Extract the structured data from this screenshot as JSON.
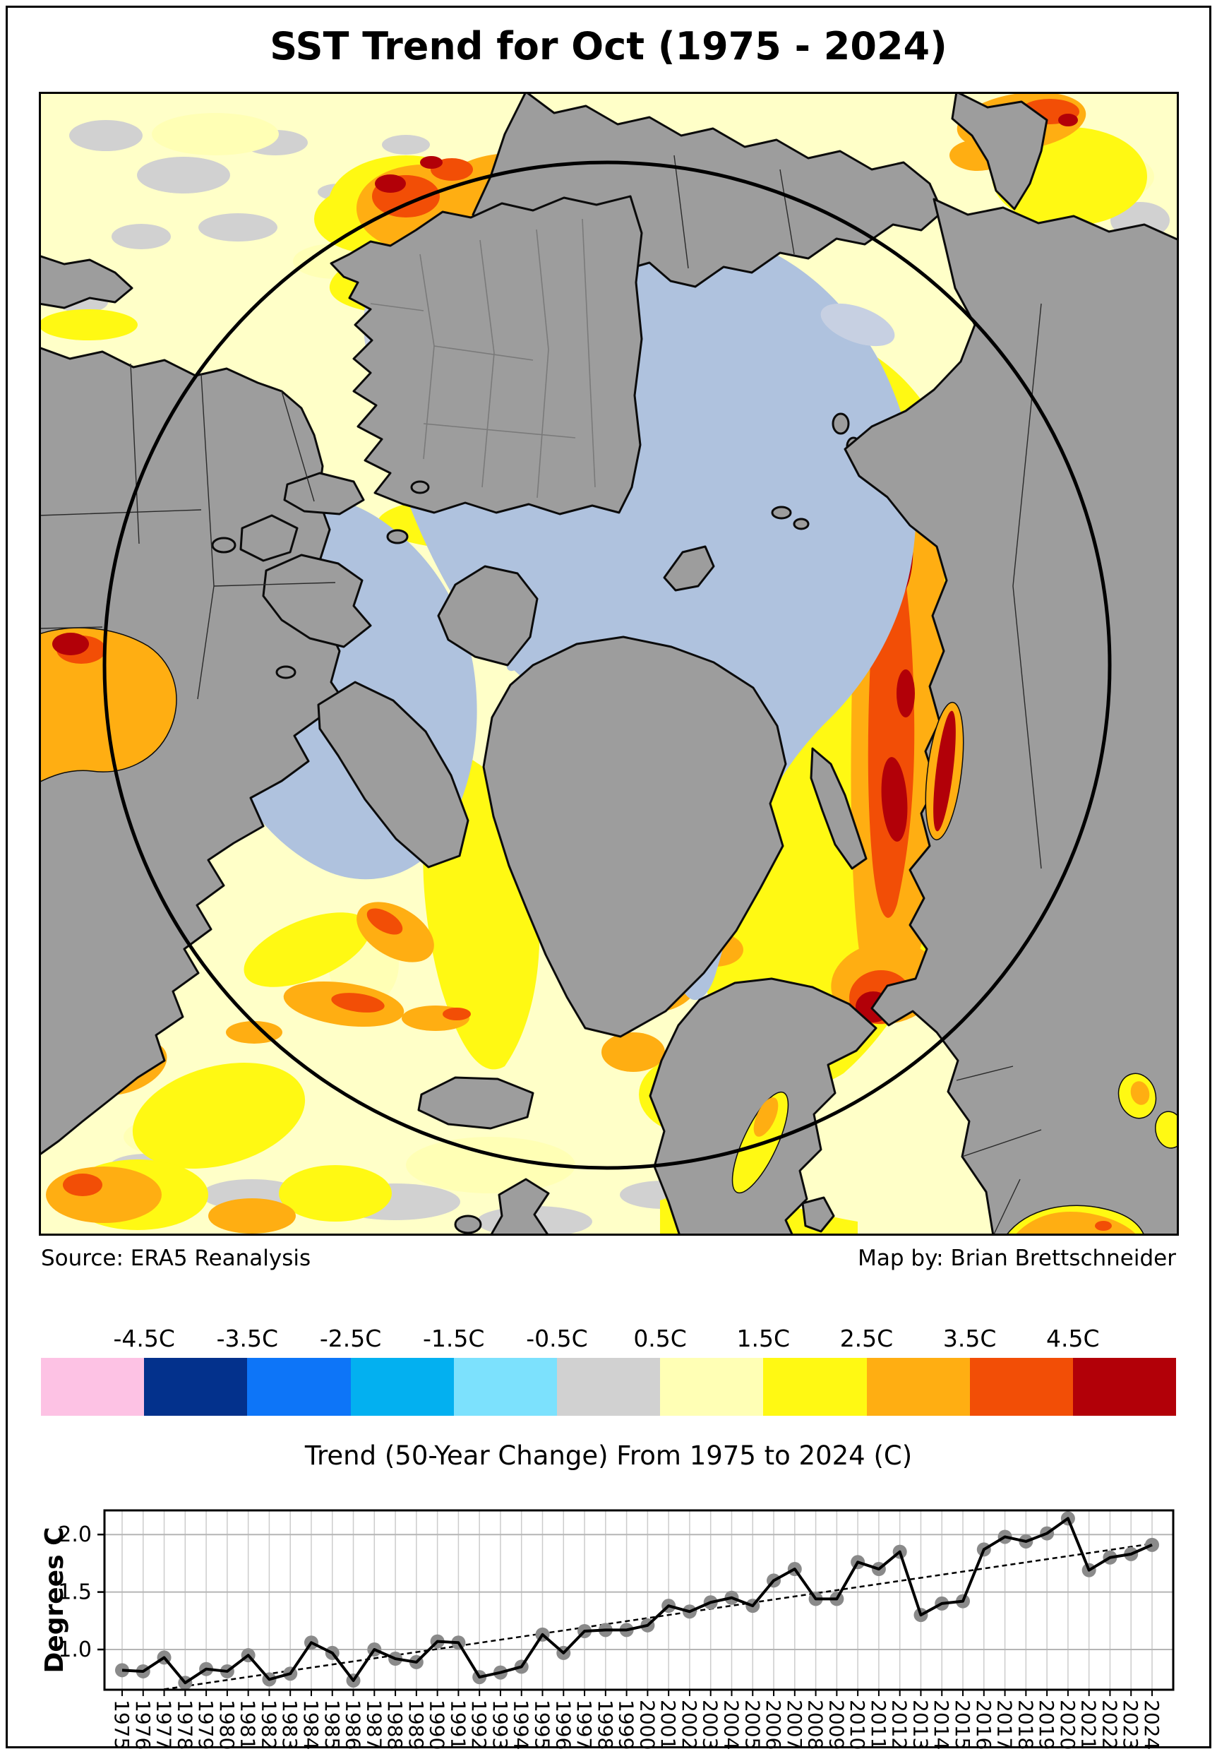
{
  "title": "SST Trend for Oct (1975 - 2024)",
  "attribution": {
    "source": "Source: ERA5 Reanalysis",
    "credit": "Map by: Brian Brettschneider"
  },
  "map_colors": {
    "ocean": "#FFFFC8",
    "land": "#9D9D9D",
    "coast": "#0B0B0B",
    "ice": "#AFC2DE",
    "arctic_circle": "#000000"
  },
  "colorbar": {
    "tick_labels": [
      "-4.5C",
      "-3.5C",
      "-2.5C",
      "-1.5C",
      "-0.5C",
      "0.5C",
      "1.5C",
      "2.5C",
      "3.5C",
      "4.5C"
    ],
    "colors": [
      "#FDC2E4",
      "#03318C",
      "#0D75F8",
      "#03B0F0",
      "#7CE1FD",
      "#D1D1D1",
      "#FFFFB5",
      "#FFF913",
      "#FFAE12",
      "#F24E06",
      "#B20008"
    ],
    "caption": "Trend (50-Year Change) From 1975 to 2024 (C)"
  },
  "chart_data": {
    "type": "line",
    "title": "",
    "xlabel": "",
    "ylabel": "Degrees C",
    "x": [
      1975,
      1976,
      1977,
      1978,
      1979,
      1980,
      1981,
      1982,
      1983,
      1984,
      1985,
      1986,
      1987,
      1988,
      1989,
      1990,
      1991,
      1992,
      1993,
      1994,
      1995,
      1996,
      1997,
      1998,
      1999,
      2000,
      2001,
      2002,
      2003,
      2004,
      2005,
      2006,
      2007,
      2008,
      2009,
      2010,
      2011,
      2012,
      2013,
      2014,
      2015,
      2016,
      2017,
      2018,
      2019,
      2020,
      2021,
      2022,
      2023,
      2024
    ],
    "values": [
      0.82,
      0.81,
      0.93,
      0.71,
      0.83,
      0.81,
      0.95,
      0.74,
      0.79,
      1.06,
      0.97,
      0.73,
      1.0,
      0.92,
      0.89,
      1.07,
      1.06,
      0.76,
      0.8,
      0.85,
      1.13,
      0.97,
      1.16,
      1.17,
      1.17,
      1.21,
      1.38,
      1.33,
      1.41,
      1.45,
      1.38,
      1.6,
      1.7,
      1.44,
      1.44,
      1.76,
      1.7,
      1.85,
      1.3,
      1.4,
      1.42,
      1.87,
      1.98,
      1.94,
      2.01,
      2.14,
      1.69,
      1.8,
      1.83,
      1.91
    ],
    "trendline": {
      "x_start": 1975,
      "y_start": 0.6,
      "x_end": 2024,
      "y_end": 1.92,
      "style": "dashed"
    },
    "yticks": [
      "1.0",
      "1.5",
      "2.0"
    ],
    "ylim": [
      0.65,
      2.21
    ],
    "grid": true,
    "legend": null,
    "line_color": "#000000",
    "marker_color": "#8a8a8a",
    "trend_color": "#000000"
  }
}
